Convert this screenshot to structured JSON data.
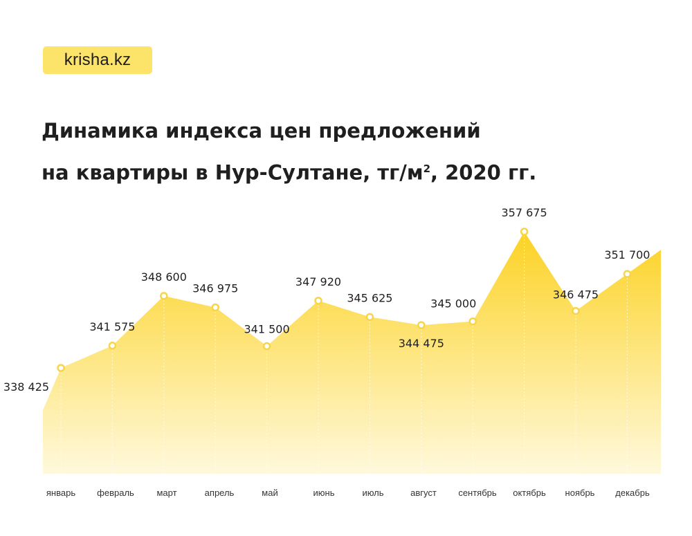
{
  "brand": {
    "logo_text": "krisha.kz"
  },
  "title": {
    "line1": "Динамика индекса цен предложений",
    "line2_main": "на квартиры в Нур-Султане, тг/м",
    "line2_sup": "2",
    "line2_tail": ", 2020 гг."
  },
  "chart_data": {
    "type": "area",
    "categories": [
      "январь",
      "февраль",
      "март",
      "апрель",
      "май",
      "июнь",
      "июль",
      "август",
      "сентябрь",
      "октябрь",
      "ноябрь",
      "декабрь"
    ],
    "values": [
      338425,
      341575,
      348600,
      346975,
      341500,
      347920,
      345625,
      344475,
      345000,
      357675,
      346475,
      351700
    ],
    "value_labels": [
      "338 425",
      "341 575",
      "348 600",
      "346 975",
      "341 500",
      "347 920",
      "345 625",
      "344 475",
      "345 000",
      "357 675",
      "346 475",
      "351 700"
    ],
    "title": "Динамика индекса цен предложений на квартиры в Нур-Султане, тг/м², 2020 гг.",
    "xlabel": "",
    "ylabel": "",
    "grid": false,
    "legend": "none",
    "colors": {
      "fill_top": "#fcd224",
      "fill_bottom": "#fff9dc",
      "marker": "#f7d548",
      "text": "#1f1f1f"
    }
  }
}
